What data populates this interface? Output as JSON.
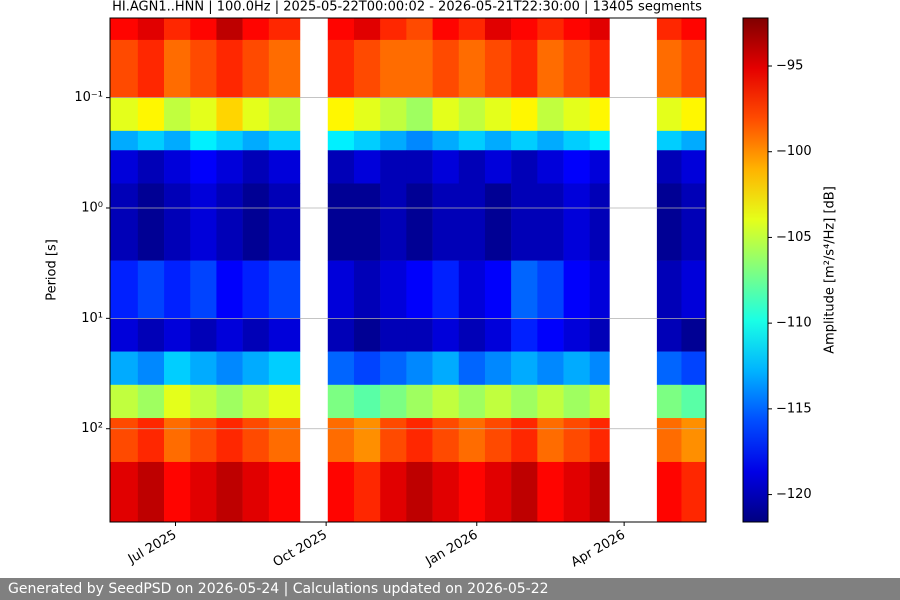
{
  "chart_data": {
    "type": "heatmap",
    "title": "HI.AGN1..HNN | 100.0Hz | 2025-05-22T00:00:02 - 2026-05-21T22:30:00 | 13405 segments",
    "ylabel": "Period [s]",
    "colorbar_label": "Amplitude [m²/s⁴/Hz] [dB]",
    "colormap": "jet",
    "log_y": true,
    "grid": true,
    "x_bins": [
      "2025-05-22",
      "2025-06-08",
      "2025-06-24",
      "2025-07-10",
      "2025-07-26",
      "2025-08-11",
      "2025-08-27",
      "2025-09-15",
      "2025-10-02",
      "2025-10-18",
      "2025-11-03",
      "2025-11-19",
      "2025-12-05",
      "2025-12-21",
      "2026-01-06",
      "2026-01-22",
      "2026-02-07",
      "2026-02-23",
      "2026-03-11",
      "2026-03-23",
      "2026-04-21",
      "2026-05-06",
      "2026-05-21"
    ],
    "y_bins": [
      0.019,
      0.03,
      0.1,
      0.2,
      0.3,
      0.6,
      3,
      10,
      20,
      40,
      80,
      200,
      700
    ],
    "z": [
      [
        -96,
        -95,
        -97,
        -96,
        -94,
        -96,
        -97,
        null,
        -96,
        -95,
        -97,
        -98,
        -96,
        -97,
        -95,
        -96,
        -97,
        -96,
        -95,
        null,
        -97,
        -96
      ],
      [
        -98,
        -97,
        -99,
        -98,
        -97,
        -98,
        -99,
        null,
        -97,
        -98,
        -99,
        -99,
        -98,
        -99,
        -98,
        -97,
        -99,
        -98,
        -97,
        null,
        -99,
        -98
      ],
      [
        -104,
        -103,
        -105,
        -104,
        -102,
        -104,
        -105,
        null,
        -103,
        -104,
        -105,
        -106,
        -104,
        -105,
        -104,
        -103,
        -105,
        -104,
        -103,
        null,
        -104,
        -103
      ],
      [
        -113,
        -112,
        -113,
        -111,
        -112,
        -113,
        -112,
        null,
        -111,
        -112,
        -113,
        -114,
        -113,
        -112,
        -113,
        -112,
        -113,
        -112,
        -111,
        null,
        -112,
        -113
      ],
      [
        -119,
        -120,
        -119,
        -118,
        -119,
        -120,
        -119,
        null,
        -120,
        -119,
        -120,
        -120,
        -119,
        -120,
        -119,
        -120,
        -119,
        -118,
        -119,
        null,
        -120,
        -119
      ],
      [
        -120,
        -121,
        -120,
        -119,
        -120,
        -121,
        -120,
        null,
        -121,
        -121,
        -120,
        -121,
        -120,
        -120,
        -121,
        -120,
        -120,
        -119,
        -120,
        null,
        -121,
        -120
      ],
      [
        -117,
        -116,
        -117,
        -116,
        -118,
        -117,
        -116,
        null,
        -119,
        -120,
        -119,
        -118,
        -117,
        -119,
        -118,
        -115,
        -116,
        -118,
        -119,
        null,
        -120,
        -119
      ],
      [
        -119,
        -120,
        -119,
        -120,
        -119,
        -120,
        -119,
        null,
        -120,
        -121,
        -120,
        -120,
        -119,
        -120,
        -119,
        -117,
        -118,
        -119,
        -120,
        null,
        -120,
        -121
      ],
      [
        -113,
        -114,
        -112,
        -113,
        -114,
        -113,
        -112,
        null,
        -115,
        -116,
        -115,
        -114,
        -113,
        -115,
        -114,
        -113,
        -114,
        -113,
        -114,
        null,
        -115,
        -116
      ],
      [
        -105,
        -106,
        -104,
        -105,
        -106,
        -105,
        -104,
        null,
        -107,
        -108,
        -107,
        -106,
        -105,
        -106,
        -105,
        -106,
        -105,
        -106,
        -105,
        null,
        -107,
        -108
      ],
      [
        -98,
        -97,
        -99,
        -98,
        -97,
        -98,
        -99,
        null,
        -99,
        -100,
        -98,
        -97,
        -98,
        -99,
        -98,
        -97,
        -99,
        -98,
        -97,
        null,
        -99,
        -100
      ],
      [
        -95,
        -94,
        -96,
        -95,
        -94,
        -95,
        -96,
        null,
        -96,
        -97,
        -95,
        -94,
        -95,
        -96,
        -95,
        -94,
        -96,
        -95,
        -94,
        null,
        -96,
        -97
      ]
    ],
    "xlim": [
      "2025-05-22",
      "2026-05-21"
    ],
    "xticks": [
      {
        "value": "2025-07-01",
        "label": "Jul 2025"
      },
      {
        "value": "2025-10-01",
        "label": "Oct 2025"
      },
      {
        "value": "2026-01-01",
        "label": "Jan 2026"
      },
      {
        "value": "2026-04-01",
        "label": "Apr 2026"
      }
    ],
    "ylim": [
      700,
      0.019
    ],
    "yticks": [
      {
        "value": 0.1,
        "label": "10⁻¹"
      },
      {
        "value": 1,
        "label": "10⁰"
      },
      {
        "value": 10,
        "label": "10¹"
      },
      {
        "value": 100,
        "label": "10²"
      }
    ],
    "clim": [
      -121.6,
      -92.2
    ],
    "cticks": [
      {
        "value": -95,
        "label": "−95"
      },
      {
        "value": -100,
        "label": "−100"
      },
      {
        "value": -105,
        "label": "−105"
      },
      {
        "value": -110,
        "label": "−110"
      },
      {
        "value": -115,
        "label": "−115"
      },
      {
        "value": -120,
        "label": "−120"
      }
    ]
  },
  "footer": "Generated by SeedPSD on 2026-05-24 | Calculations updated on 2026-05-22"
}
